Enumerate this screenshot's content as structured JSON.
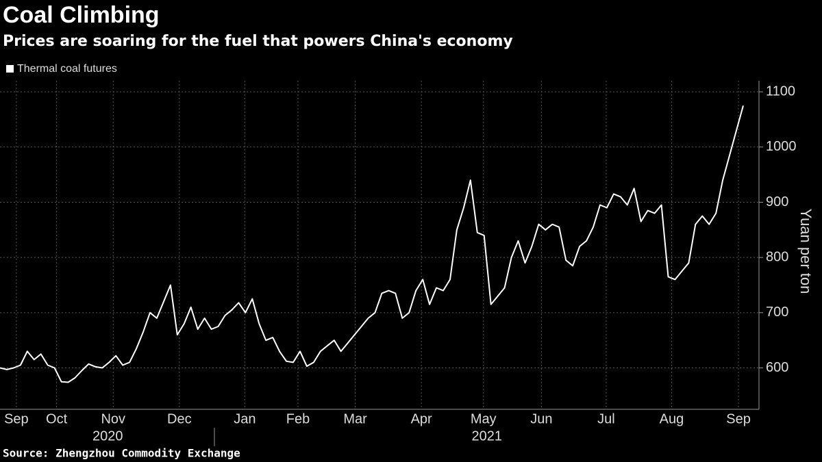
{
  "chart_data": {
    "type": "line",
    "title": "Coal Climbing",
    "subtitle": "Prices are soaring for the fuel that powers China's economy",
    "y_label": "Yuan per ton",
    "source": "Source: Zhengzhou Commodity Exchange",
    "series": [
      {
        "name": "Thermal coal futures",
        "color": "#ffffff",
        "values": [
          600,
          597,
          600,
          605,
          630,
          615,
          625,
          605,
          600,
          575,
          574,
          582,
          595,
          607,
          602,
          600,
          610,
          622,
          605,
          610,
          635,
          665,
          700,
          690,
          720,
          750,
          660,
          680,
          710,
          670,
          690,
          670,
          675,
          695,
          705,
          718,
          700,
          725,
          680,
          650,
          655,
          630,
          612,
          610,
          630,
          603,
          610,
          630,
          640,
          650,
          630,
          645,
          660,
          675,
          690,
          700,
          735,
          740,
          735,
          690,
          700,
          740,
          760,
          715,
          745,
          740,
          760,
          850,
          890,
          940,
          845,
          840,
          715,
          730,
          745,
          800,
          830,
          790,
          820,
          860,
          850,
          860,
          855,
          795,
          785,
          820,
          830,
          855,
          895,
          890,
          915,
          910,
          895,
          925,
          865,
          885,
          880,
          895,
          765,
          760,
          775,
          790,
          860,
          875,
          860,
          880,
          940,
          985,
          1030,
          1075
        ]
      }
    ],
    "xlim": [
      0,
      109
    ],
    "xticks": [
      {
        "value": 2.4,
        "label": "Sep"
      },
      {
        "value": 8.3,
        "label": "Oct"
      },
      {
        "value": 16.6,
        "label": "Nov"
      },
      {
        "value": 26.3,
        "label": "Dec"
      },
      {
        "value": 35.9,
        "label": "Jan"
      },
      {
        "value": 43.7,
        "label": "Feb"
      },
      {
        "value": 52.1,
        "label": "Mar"
      },
      {
        "value": 61.8,
        "label": "Apr"
      },
      {
        "value": 70.9,
        "label": "May"
      },
      {
        "value": 79.4,
        "label": "Jun"
      },
      {
        "value": 88.9,
        "label": "Jul"
      },
      {
        "value": 98.5,
        "label": "Aug"
      },
      {
        "value": 108.3,
        "label": "Sep"
      }
    ],
    "year_labels": [
      {
        "value": 15.8,
        "label": "2020"
      },
      {
        "value": 71.4,
        "label": "2021"
      }
    ],
    "ylim": [
      525,
      1120
    ],
    "yticks": [
      600,
      700,
      800,
      900,
      1000,
      1100
    ],
    "grid": true
  }
}
